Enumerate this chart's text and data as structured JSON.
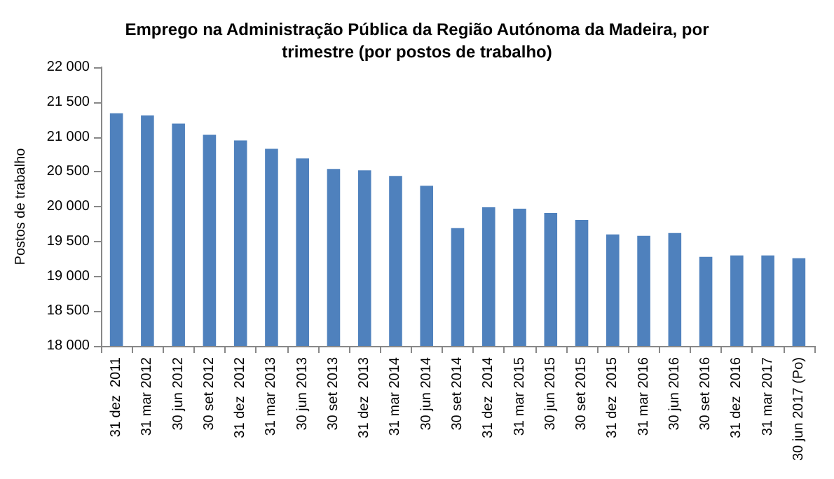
{
  "chart_data": {
    "type": "bar",
    "title": "Emprego na Administração Pública da Região Autónoma da Madeira, por\ntrimestre (por postos de trabalho)",
    "ylabel": "Postos de trabalho",
    "categories": [
      "31 dez  2011",
      "31 mar 2012",
      "30 jun 2012",
      "30 set 2012",
      "31 dez  2012",
      "31 mar 2013",
      "30 jun 2013",
      "30 set 2013",
      "31 dez  2013",
      "31 mar 2014",
      "30 jun 2014",
      "30 set 2014",
      "31 dez  2014",
      "31 mar 2015",
      "30 jun 2015",
      "30 set 2015",
      "31 dez  2015",
      "31 mar 2016",
      "30 jun 2016",
      "30 set 2016",
      "31 dez  2016",
      "31 mar 2017",
      "30 jun 2017 (Po)"
    ],
    "values": [
      21340,
      21310,
      21190,
      21030,
      20950,
      20830,
      20690,
      20540,
      20520,
      20440,
      20300,
      19690,
      19990,
      19970,
      19910,
      19810,
      19600,
      19580,
      19620,
      19280,
      19300,
      19300,
      19260
    ],
    "color": "#4f81bd",
    "ylim": [
      18000,
      22000
    ],
    "yticks": [
      {
        "value": 18000,
        "label": "18 000"
      },
      {
        "value": 18500,
        "label": "18 500"
      },
      {
        "value": 19000,
        "label": "19 000"
      },
      {
        "value": 19500,
        "label": "19 500"
      },
      {
        "value": 20000,
        "label": "20 000"
      },
      {
        "value": 20500,
        "label": "20 500"
      },
      {
        "value": 21000,
        "label": "21 000"
      },
      {
        "value": 21500,
        "label": "21 500"
      },
      {
        "value": 22000,
        "label": "22 000"
      }
    ],
    "grid": false
  }
}
